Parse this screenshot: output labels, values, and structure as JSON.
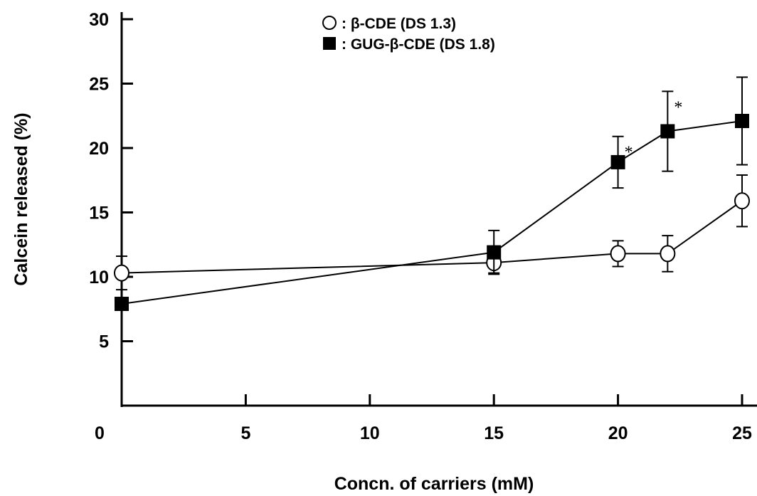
{
  "chart_data": {
    "type": "line",
    "xlabel": "Concn. of carriers (mM)",
    "ylabel": "Calcein released (%)",
    "xlim": [
      0,
      25
    ],
    "ylim": [
      0,
      30
    ],
    "x_ticks": [
      0,
      5,
      10,
      15,
      20,
      25
    ],
    "y_ticks": [
      5,
      10,
      15,
      20,
      25,
      30
    ],
    "legend_position": "top-center",
    "series": [
      {
        "name": "β-CDE (DS 1.3)",
        "marker": "open-circle",
        "x": [
          0,
          15,
          20,
          22,
          25
        ],
        "y": [
          10.3,
          11.1,
          11.8,
          11.8,
          15.9
        ],
        "err": [
          1.3,
          0.8,
          1.0,
          1.4,
          2.0
        ]
      },
      {
        "name": "GUG-β-CDE (DS 1.8)",
        "marker": "filled-square",
        "x": [
          0,
          15,
          20,
          22,
          25
        ],
        "y": [
          7.9,
          11.9,
          18.9,
          21.3,
          22.1
        ],
        "err": [
          0,
          1.7,
          2.0,
          3.1,
          3.4
        ]
      }
    ],
    "annotations": [
      {
        "text": "*",
        "series": "GUG-β-CDE (DS 1.8)",
        "x": 20
      },
      {
        "text": "*",
        "series": "GUG-β-CDE (DS 1.8)",
        "x": 22
      }
    ]
  }
}
